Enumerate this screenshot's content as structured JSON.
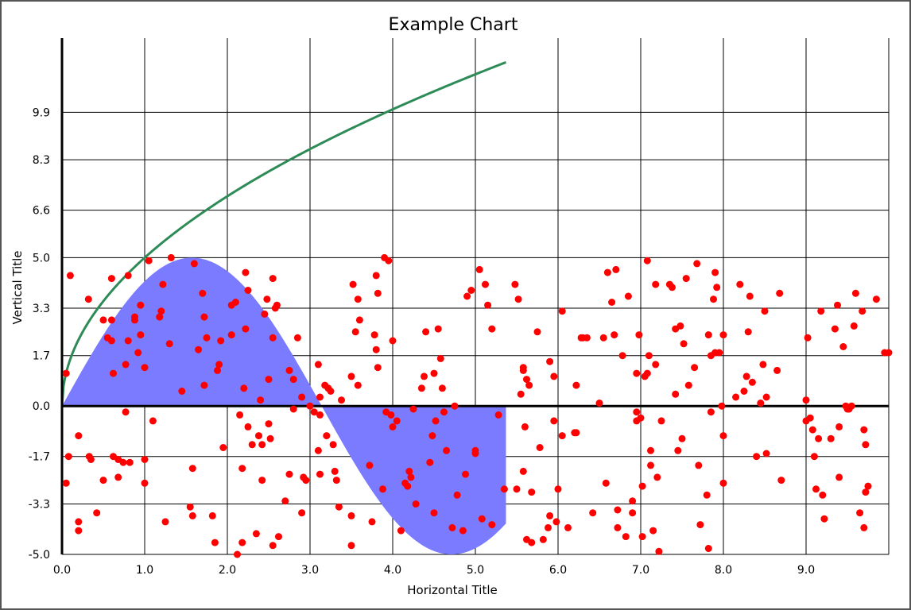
{
  "chart_data": {
    "type": "scatter",
    "title": "Example Chart",
    "xlabel": "Horizontal Title",
    "ylabel": "Vertical Title",
    "xlim": [
      0,
      10
    ],
    "ylim": [
      -5,
      12.4
    ],
    "grid": true,
    "x_tick_labels": [
      "0.0",
      "1.0",
      "2.0",
      "3.0",
      "4.0",
      "5.0",
      "6.0",
      "7.0",
      "8.0",
      "9.0"
    ],
    "y_tick_labels": [
      "-5.0",
      "-3.3",
      "-1.7",
      "0.0",
      "1.7",
      "3.3",
      "5.0",
      "6.6",
      "8.3",
      "9.9"
    ],
    "y_ticks": [
      -5.0,
      -3.3,
      -1.7,
      0.0,
      1.7,
      3.3,
      5.0,
      6.6,
      8.3,
      9.9
    ],
    "series": [
      {
        "type": "area",
        "color": "#7b7bff",
        "function": "5*sin(x)",
        "x_range": [
          0,
          5.37
        ]
      },
      {
        "type": "line",
        "color": "#2e8b57",
        "function": "5*sqrt(x)",
        "x_range": [
          0,
          5.37
        ]
      },
      {
        "type": "scatter",
        "color": "#ff0000",
        "points": [
          [
            0.05,
            1.1
          ],
          [
            0.08,
            -1.7
          ],
          [
            0.05,
            -2.6
          ],
          [
            0.1,
            4.4
          ],
          [
            0.2,
            -1.0
          ],
          [
            0.2,
            -3.9
          ],
          [
            0.2,
            -4.2
          ],
          [
            0.32,
            3.6
          ],
          [
            0.33,
            -1.7
          ],
          [
            0.35,
            -1.8
          ],
          [
            0.42,
            -3.6
          ],
          [
            0.5,
            2.9
          ],
          [
            0.5,
            -2.5
          ],
          [
            0.55,
            2.3
          ],
          [
            0.6,
            2.2
          ],
          [
            0.6,
            2.9
          ],
          [
            0.6,
            4.3
          ],
          [
            0.62,
            1.1
          ],
          [
            0.62,
            -1.7
          ],
          [
            0.68,
            -1.8
          ],
          [
            0.68,
            -2.4
          ],
          [
            0.74,
            -1.9
          ],
          [
            0.77,
            -0.2
          ],
          [
            0.77,
            1.4
          ],
          [
            0.8,
            4.4
          ],
          [
            0.8,
            2.2
          ],
          [
            0.82,
            -1.9
          ],
          [
            0.88,
            2.9
          ],
          [
            0.88,
            3.0
          ],
          [
            0.92,
            1.8
          ],
          [
            0.95,
            2.4
          ],
          [
            0.95,
            3.4
          ],
          [
            1.0,
            1.3
          ],
          [
            1.0,
            -1.8
          ],
          [
            1.0,
            -2.6
          ],
          [
            1.05,
            4.9
          ],
          [
            1.1,
            -0.5
          ],
          [
            1.18,
            3.0
          ],
          [
            1.2,
            3.2
          ],
          [
            1.22,
            4.1
          ],
          [
            1.25,
            -3.9
          ],
          [
            1.3,
            2.1
          ],
          [
            1.32,
            5.0
          ],
          [
            1.45,
            0.5
          ],
          [
            1.55,
            -3.4
          ],
          [
            1.58,
            -2.1
          ],
          [
            1.58,
            -3.7
          ],
          [
            1.6,
            4.8
          ],
          [
            1.65,
            1.9
          ],
          [
            1.7,
            3.8
          ],
          [
            1.72,
            3.0
          ],
          [
            1.72,
            0.7
          ],
          [
            1.75,
            2.3
          ],
          [
            1.82,
            -3.7
          ],
          [
            1.85,
            -4.6
          ],
          [
            1.88,
            1.2
          ],
          [
            1.9,
            1.4
          ],
          [
            1.92,
            2.2
          ],
          [
            1.95,
            -1.4
          ],
          [
            2.05,
            2.4
          ],
          [
            2.05,
            3.4
          ],
          [
            2.1,
            3.5
          ],
          [
            2.12,
            -5.0
          ],
          [
            2.15,
            -0.3
          ],
          [
            2.18,
            -4.6
          ],
          [
            2.18,
            -2.1
          ],
          [
            2.2,
            0.6
          ],
          [
            2.22,
            2.6
          ],
          [
            2.22,
            4.5
          ],
          [
            2.25,
            3.9
          ],
          [
            2.25,
            -0.7
          ],
          [
            2.3,
            -1.3
          ],
          [
            2.35,
            -4.3
          ],
          [
            2.38,
            -1.0
          ],
          [
            2.4,
            0.2
          ],
          [
            2.42,
            -1.3
          ],
          [
            2.42,
            -2.5
          ],
          [
            2.45,
            3.1
          ],
          [
            2.48,
            3.6
          ],
          [
            2.5,
            0.9
          ],
          [
            2.5,
            -0.6
          ],
          [
            2.52,
            -1.1
          ],
          [
            2.55,
            2.3
          ],
          [
            2.55,
            4.3
          ],
          [
            2.55,
            -4.7
          ],
          [
            2.58,
            3.3
          ],
          [
            2.6,
            3.4
          ],
          [
            2.62,
            -4.4
          ],
          [
            2.7,
            -3.2
          ],
          [
            2.75,
            1.2
          ],
          [
            2.75,
            -2.3
          ],
          [
            2.8,
            0.9
          ],
          [
            2.8,
            -0.1
          ],
          [
            2.85,
            2.3
          ],
          [
            2.9,
            0.3
          ],
          [
            2.9,
            -3.6
          ],
          [
            2.92,
            -2.4
          ],
          [
            2.95,
            -2.5
          ],
          [
            3.0,
            0.0
          ],
          [
            3.05,
            -0.2
          ],
          [
            3.1,
            1.4
          ],
          [
            3.1,
            -1.5
          ],
          [
            3.12,
            0.3
          ],
          [
            3.12,
            -0.3
          ],
          [
            3.12,
            -2.3
          ],
          [
            3.18,
            0.7
          ],
          [
            3.2,
            -1.0
          ],
          [
            3.22,
            0.6
          ],
          [
            3.25,
            0.5
          ],
          [
            3.28,
            -1.3
          ],
          [
            3.3,
            -2.2
          ],
          [
            3.32,
            -2.5
          ],
          [
            3.35,
            -3.4
          ],
          [
            3.38,
            0.2
          ],
          [
            3.5,
            1.0
          ],
          [
            3.5,
            -3.7
          ],
          [
            3.5,
            -4.7
          ],
          [
            3.52,
            4.1
          ],
          [
            3.55,
            2.5
          ],
          [
            3.58,
            3.6
          ],
          [
            3.58,
            0.7
          ],
          [
            3.6,
            2.9
          ],
          [
            3.72,
            -2.0
          ],
          [
            3.75,
            -3.9
          ],
          [
            3.78,
            2.4
          ],
          [
            3.8,
            1.9
          ],
          [
            3.8,
            4.4
          ],
          [
            3.82,
            3.8
          ],
          [
            3.82,
            1.3
          ],
          [
            3.88,
            -2.8
          ],
          [
            3.9,
            5.0
          ],
          [
            3.92,
            -0.2
          ],
          [
            3.95,
            4.9
          ],
          [
            3.98,
            -0.3
          ],
          [
            4.0,
            -0.7
          ],
          [
            4.0,
            2.2
          ],
          [
            4.05,
            -0.5
          ],
          [
            4.1,
            -4.2
          ],
          [
            4.15,
            -2.6
          ],
          [
            4.18,
            -2.7
          ],
          [
            4.2,
            -2.2
          ],
          [
            4.22,
            -2.4
          ],
          [
            4.25,
            -0.1
          ],
          [
            4.28,
            -3.3
          ],
          [
            4.35,
            0.6
          ],
          [
            4.38,
            1.0
          ],
          [
            4.4,
            2.5
          ],
          [
            4.45,
            -1.9
          ],
          [
            4.48,
            -1.0
          ],
          [
            4.5,
            -3.6
          ],
          [
            4.5,
            1.1
          ],
          [
            4.52,
            -0.5
          ],
          [
            4.55,
            2.6
          ],
          [
            4.58,
            1.6
          ],
          [
            4.6,
            0.6
          ],
          [
            4.62,
            -0.2
          ],
          [
            4.65,
            -1.5
          ],
          [
            4.72,
            -4.1
          ],
          [
            4.75,
            0.0
          ],
          [
            4.78,
            -3.0
          ],
          [
            4.85,
            -4.2
          ],
          [
            4.88,
            -2.3
          ],
          [
            4.9,
            3.7
          ],
          [
            4.95,
            3.9
          ],
          [
            5.0,
            -1.5
          ],
          [
            5.0,
            -1.6
          ],
          [
            5.05,
            4.6
          ],
          [
            5.08,
            -3.8
          ],
          [
            5.12,
            4.1
          ],
          [
            5.15,
            3.4
          ],
          [
            5.2,
            2.6
          ],
          [
            5.2,
            -4.0
          ],
          [
            5.28,
            -0.3
          ],
          [
            5.35,
            -2.8
          ],
          [
            5.48,
            4.1
          ],
          [
            5.5,
            -2.8
          ],
          [
            5.52,
            3.6
          ],
          [
            5.55,
            0.4
          ],
          [
            5.58,
            1.2
          ],
          [
            5.58,
            1.3
          ],
          [
            5.58,
            -2.2
          ],
          [
            5.6,
            -0.7
          ],
          [
            5.62,
            0.9
          ],
          [
            5.62,
            -4.5
          ],
          [
            5.65,
            0.7
          ],
          [
            5.68,
            -4.6
          ],
          [
            5.68,
            -2.9
          ],
          [
            5.75,
            2.5
          ],
          [
            5.78,
            -1.4
          ],
          [
            5.82,
            -4.5
          ],
          [
            5.88,
            -4.1
          ],
          [
            5.9,
            1.5
          ],
          [
            5.9,
            -3.7
          ],
          [
            5.95,
            1.0
          ],
          [
            5.95,
            -0.5
          ],
          [
            5.98,
            -3.9
          ],
          [
            6.0,
            -2.8
          ],
          [
            6.05,
            3.2
          ],
          [
            6.05,
            -1.0
          ],
          [
            6.12,
            -4.1
          ],
          [
            6.2,
            -0.9
          ],
          [
            6.22,
            -0.9
          ],
          [
            6.22,
            0.7
          ],
          [
            6.28,
            2.3
          ],
          [
            6.3,
            2.3
          ],
          [
            6.35,
            2.3
          ],
          [
            6.42,
            -3.6
          ],
          [
            6.5,
            0.1
          ],
          [
            6.55,
            2.3
          ],
          [
            6.58,
            -2.6
          ],
          [
            6.6,
            4.5
          ],
          [
            6.65,
            3.5
          ],
          [
            6.68,
            2.4
          ],
          [
            6.7,
            4.6
          ],
          [
            6.72,
            -3.5
          ],
          [
            6.72,
            -4.1
          ],
          [
            6.78,
            1.7
          ],
          [
            6.82,
            -4.4
          ],
          [
            6.85,
            3.7
          ],
          [
            6.9,
            -3.2
          ],
          [
            6.9,
            -3.6
          ],
          [
            6.95,
            -0.2
          ],
          [
            6.95,
            -0.5
          ],
          [
            6.95,
            1.1
          ],
          [
            6.98,
            2.4
          ],
          [
            7.0,
            -0.4
          ],
          [
            7.02,
            -2.7
          ],
          [
            7.02,
            -4.4
          ],
          [
            7.05,
            1.0
          ],
          [
            7.08,
            1.1
          ],
          [
            7.08,
            4.9
          ],
          [
            7.1,
            1.7
          ],
          [
            7.12,
            -2.0
          ],
          [
            7.12,
            -1.5
          ],
          [
            7.15,
            -4.2
          ],
          [
            7.18,
            1.4
          ],
          [
            7.18,
            4.1
          ],
          [
            7.2,
            -2.4
          ],
          [
            7.22,
            -4.9
          ],
          [
            7.25,
            -0.5
          ],
          [
            7.35,
            4.1
          ],
          [
            7.38,
            4.0
          ],
          [
            7.42,
            0.4
          ],
          [
            7.42,
            2.6
          ],
          [
            7.45,
            -1.5
          ],
          [
            7.48,
            2.7
          ],
          [
            7.5,
            -1.1
          ],
          [
            7.52,
            2.1
          ],
          [
            7.55,
            4.3
          ],
          [
            7.58,
            0.7
          ],
          [
            7.65,
            1.3
          ],
          [
            7.68,
            4.8
          ],
          [
            7.7,
            -2.0
          ],
          [
            7.72,
            -4.0
          ],
          [
            7.8,
            -3.0
          ],
          [
            7.82,
            -4.8
          ],
          [
            7.82,
            2.4
          ],
          [
            7.85,
            -0.2
          ],
          [
            7.85,
            1.7
          ],
          [
            7.88,
            3.6
          ],
          [
            7.9,
            1.8
          ],
          [
            7.9,
            4.5
          ],
          [
            7.92,
            4.0
          ],
          [
            7.95,
            1.8
          ],
          [
            7.98,
            0.0
          ],
          [
            8.0,
            2.4
          ],
          [
            8.0,
            -1.0
          ],
          [
            8.0,
            -2.6
          ],
          [
            8.15,
            0.3
          ],
          [
            8.2,
            4.1
          ],
          [
            8.25,
            0.5
          ],
          [
            8.28,
            1.0
          ],
          [
            8.3,
            2.5
          ],
          [
            8.32,
            3.7
          ],
          [
            8.35,
            0.8
          ],
          [
            8.4,
            -1.7
          ],
          [
            8.45,
            0.1
          ],
          [
            8.48,
            1.4
          ],
          [
            8.5,
            3.2
          ],
          [
            8.52,
            -1.6
          ],
          [
            8.52,
            0.3
          ],
          [
            8.65,
            1.2
          ],
          [
            8.68,
            3.8
          ],
          [
            8.7,
            -2.5
          ],
          [
            9.0,
            0.2
          ],
          [
            9.0,
            -0.5
          ],
          [
            9.02,
            2.3
          ],
          [
            9.05,
            -0.4
          ],
          [
            9.08,
            -0.8
          ],
          [
            9.1,
            -1.7
          ],
          [
            9.12,
            -2.8
          ],
          [
            9.15,
            -1.1
          ],
          [
            9.18,
            3.2
          ],
          [
            9.2,
            -3.0
          ],
          [
            9.22,
            -3.8
          ],
          [
            9.3,
            -1.1
          ],
          [
            9.35,
            2.6
          ],
          [
            9.38,
            3.4
          ],
          [
            9.4,
            -0.7
          ],
          [
            9.4,
            -2.4
          ],
          [
            9.45,
            2.0
          ],
          [
            9.48,
            0.0
          ],
          [
            9.5,
            -0.1
          ],
          [
            9.52,
            -0.1
          ],
          [
            9.55,
            0.0
          ],
          [
            9.58,
            2.7
          ],
          [
            9.6,
            3.8
          ],
          [
            9.65,
            -3.6
          ],
          [
            9.68,
            3.2
          ],
          [
            9.7,
            -4.1
          ],
          [
            9.7,
            -0.8
          ],
          [
            9.72,
            -2.9
          ],
          [
            9.72,
            -1.3
          ],
          [
            9.75,
            -2.7
          ],
          [
            9.85,
            3.6
          ],
          [
            9.95,
            1.8
          ],
          [
            10.0,
            1.8
          ]
        ]
      }
    ]
  }
}
